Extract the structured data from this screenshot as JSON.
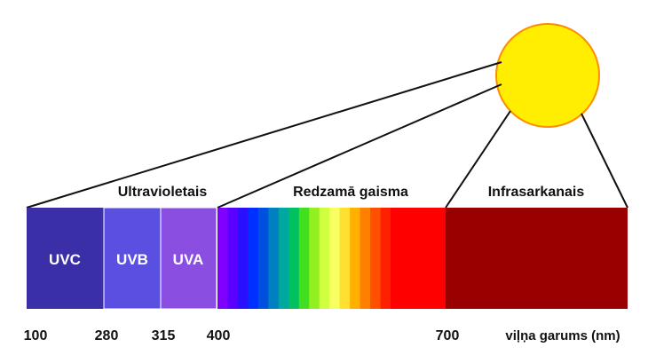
{
  "region_labels": {
    "ultraviolet": "Ultravioletais",
    "visible": "Redzamā gaisma",
    "infrared": "Infrasarkanais"
  },
  "bands": {
    "uvc": {
      "label": "UVC",
      "color": "#3a2fa6"
    },
    "uvb": {
      "label": "UVB",
      "color": "#5a4fe0"
    },
    "uva": {
      "label": "UVA",
      "color": "#8a4fe0"
    },
    "infrared": {
      "color": "#990000"
    }
  },
  "visible_spectrum_colors": [
    "#8000ff",
    "#5a00ff",
    "#2a10ff",
    "#0030ff",
    "#0050e0",
    "#0080c0",
    "#00a8a0",
    "#00c060",
    "#40e020",
    "#90f020",
    "#d0ff40",
    "#f8ff60",
    "#ffe030",
    "#ffb000",
    "#ff8000",
    "#ff5000",
    "#ff2000",
    "#ff0000"
  ],
  "sun_color": "#ffee00",
  "axis": {
    "ticks": [
      "100",
      "280",
      "315",
      "400",
      "700"
    ],
    "unit_label": "viļņa garums (nm)"
  }
}
